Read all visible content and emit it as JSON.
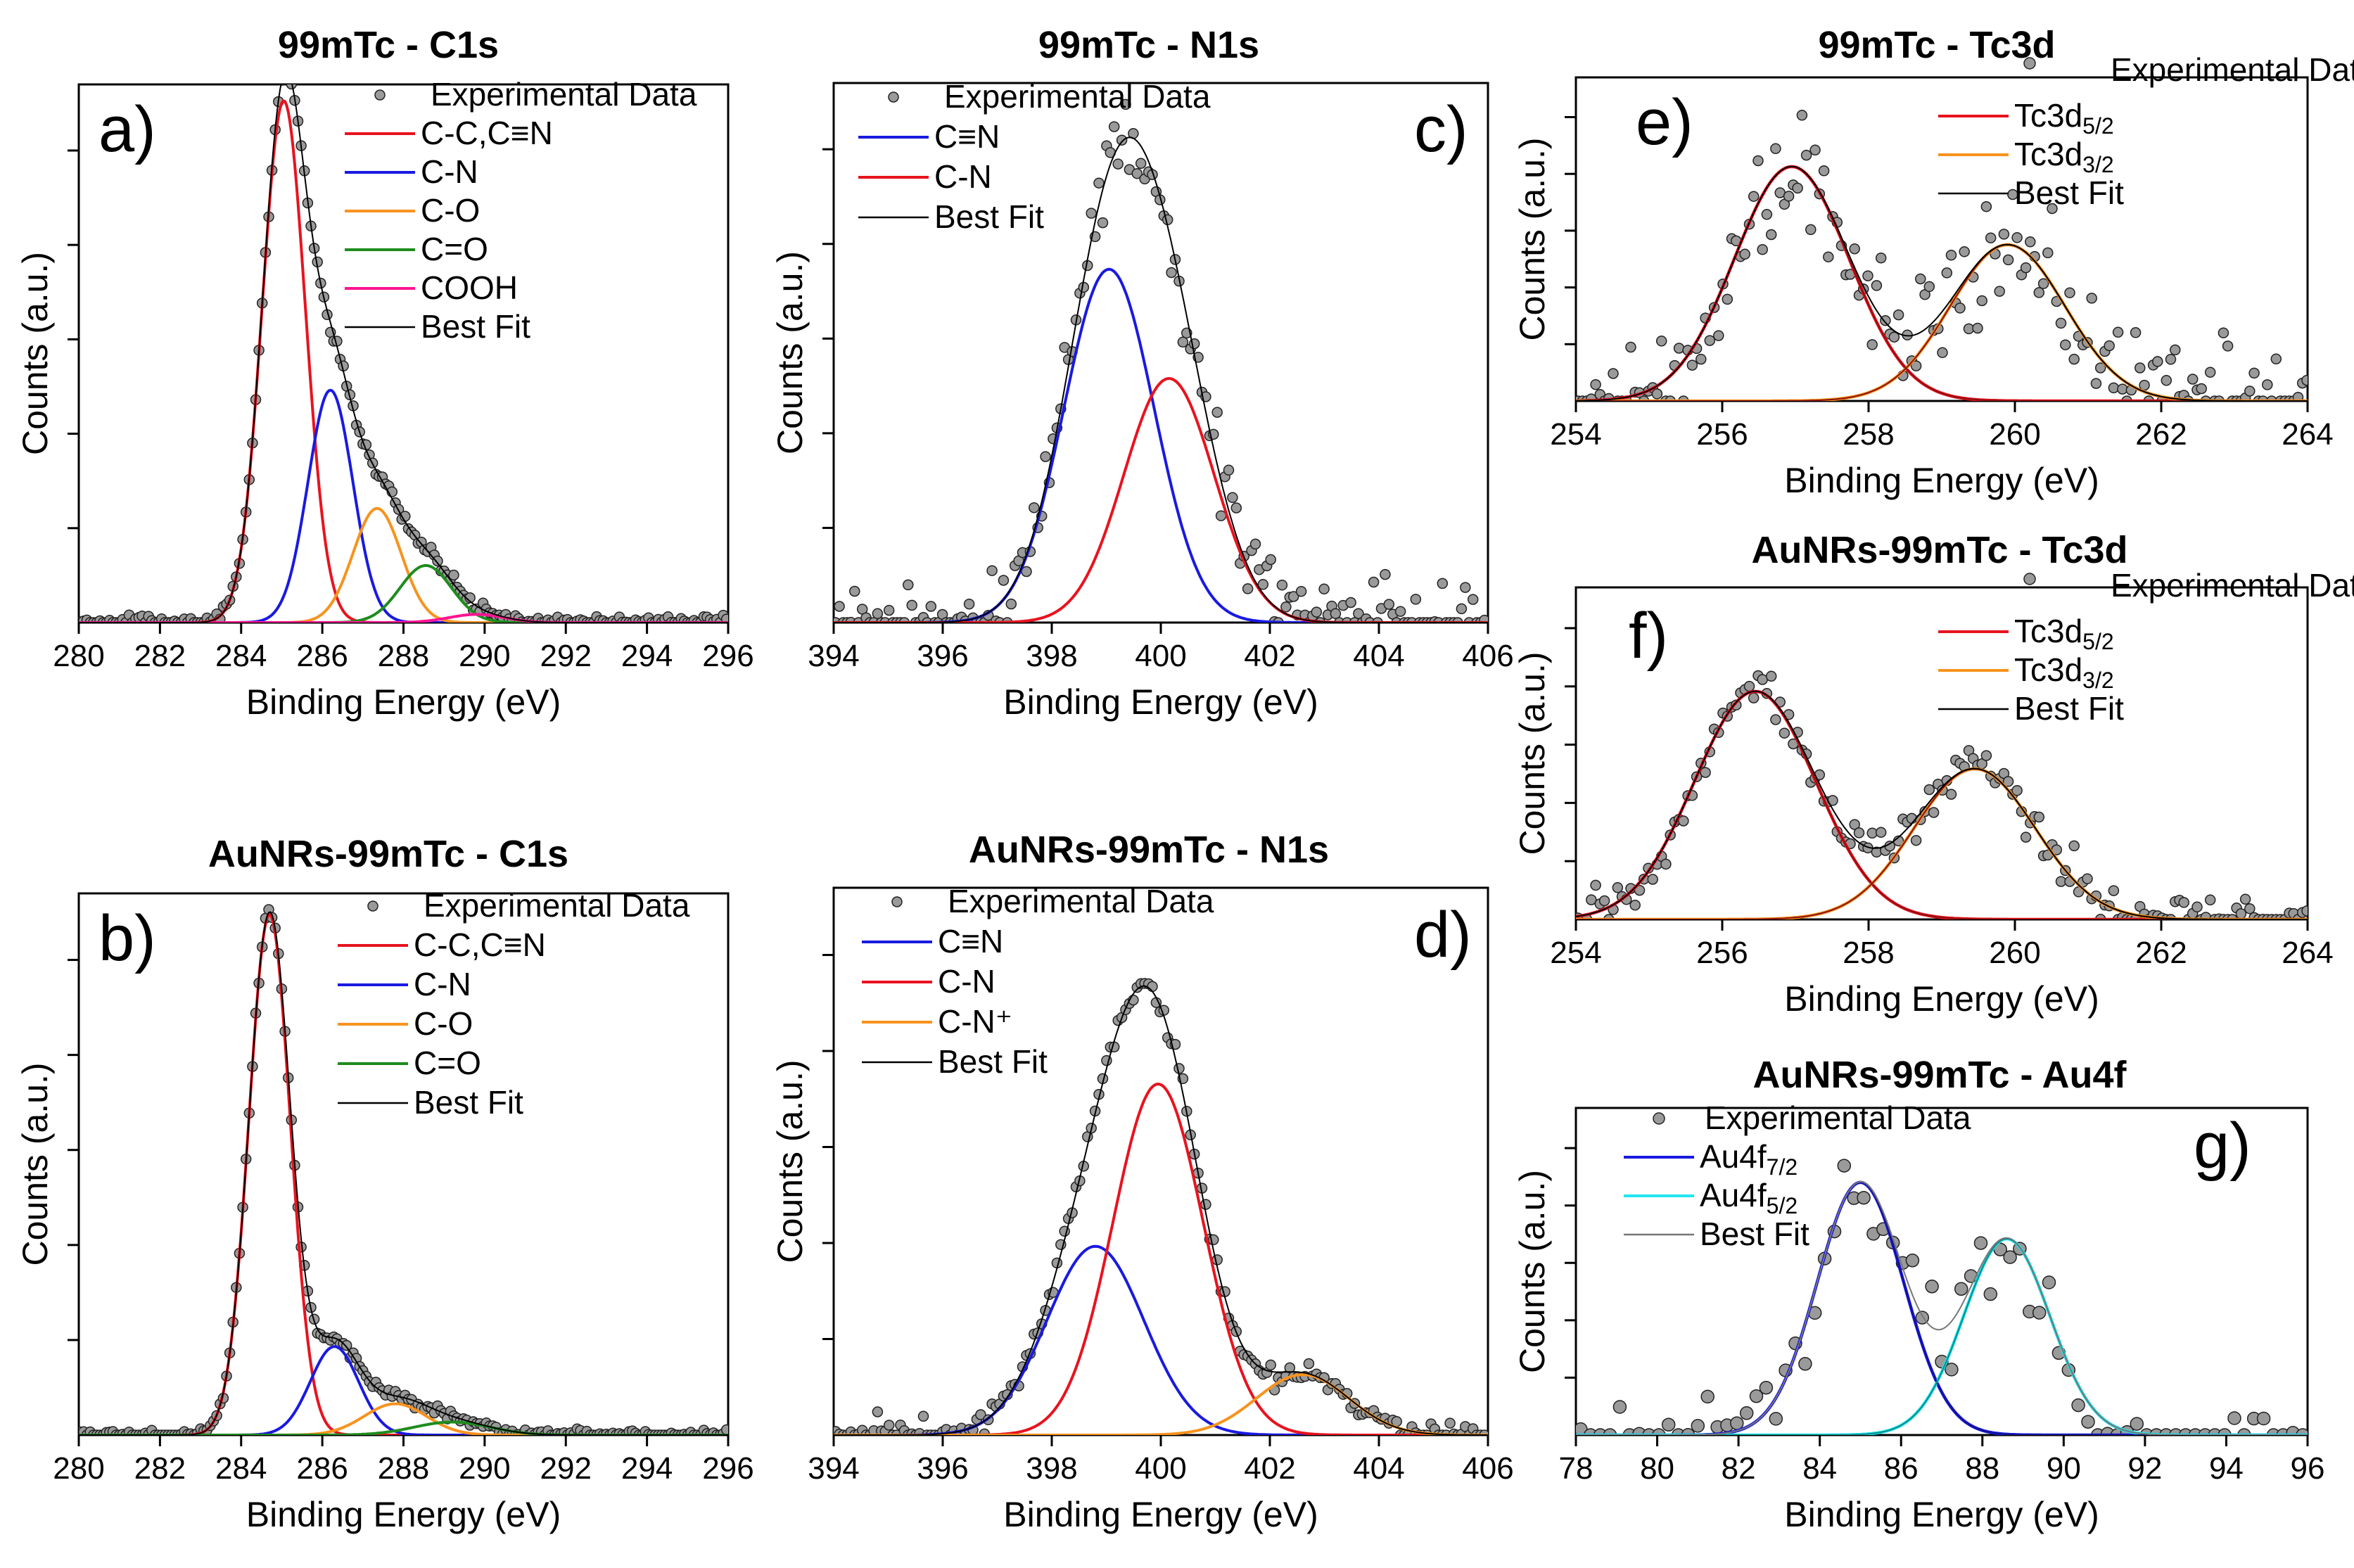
{
  "figure": {
    "description": "XPS spectra panels",
    "colors": {
      "red": "#e8131f",
      "blue": "#1a1ae0",
      "orange": "#f7931e",
      "green": "#1e8c1e",
      "magenta": "#ff1493",
      "darkred": "#8b1010",
      "darkblue": "#12128c",
      "cyan": "#22e6f0",
      "teal": "#0b8a8a",
      "black": "#000000",
      "gray": "#777777"
    }
  },
  "chart_data": [
    {
      "id": "a",
      "type": "scatter",
      "title": "99mTc - C1s",
      "panel_label": "a)",
      "xlabel": "Binding Energy (eV)",
      "ylabel": "Counts (a.u.)",
      "xlim": [
        280,
        296
      ],
      "ylim": [
        0,
        1.32
      ],
      "xticks": [
        280,
        282,
        284,
        286,
        288,
        290,
        292,
        294,
        296
      ],
      "xtick_labels": [
        "280",
        "282",
        "284",
        "286",
        "288",
        "290",
        "292",
        "294",
        "296"
      ],
      "noise": 0.008,
      "point_step": 0.08,
      "experimental_label": "Experimental Data",
      "best_fit": {
        "name": "Best Fit",
        "color": "#000000"
      },
      "series": [
        {
          "name": "C-C,C≡N",
          "color": "#e8131f",
          "center": 285.05,
          "amp": 1.28,
          "fwhm": 1.25
        },
        {
          "name": "C-N",
          "color": "#1a1ae0",
          "center": 286.2,
          "amp": 0.57,
          "fwhm": 1.3
        },
        {
          "name": "C-O",
          "color": "#f7931e",
          "center": 287.35,
          "amp": 0.28,
          "fwhm": 1.4
        },
        {
          "name": "C=O",
          "color": "#1e8c1e",
          "center": 288.55,
          "amp": 0.14,
          "fwhm": 1.5
        },
        {
          "name": "COOH",
          "color": "#ff1493",
          "center": 289.8,
          "amp": 0.02,
          "fwhm": 1.6
        }
      ]
    },
    {
      "id": "b",
      "type": "scatter",
      "title": "AuNRs-99mTc - C1s",
      "panel_label": "b)",
      "xlabel": "Binding Energy (eV)",
      "ylabel": "Counts (a.u.)",
      "xlim": [
        280,
        296
      ],
      "ylim": [
        0,
        1.04
      ],
      "xticks": [
        280,
        282,
        284,
        286,
        288,
        290,
        292,
        294,
        296
      ],
      "xtick_labels": [
        "280",
        "282",
        "284",
        "286",
        "288",
        "290",
        "292",
        "294",
        "296"
      ],
      "noise": 0.006,
      "point_step": 0.08,
      "experimental_label": "Experimental Data",
      "best_fit": {
        "name": "Best Fit",
        "color": "#000000"
      },
      "series": [
        {
          "name": "C-C,C≡N",
          "color": "#e8131f",
          "center": 284.7,
          "amp": 1.0,
          "fwhm": 1.2
        },
        {
          "name": "C-N",
          "color": "#1a1ae0",
          "center": 286.3,
          "amp": 0.17,
          "fwhm": 1.4
        },
        {
          "name": "C-O",
          "color": "#f7931e",
          "center": 287.8,
          "amp": 0.06,
          "fwhm": 1.8
        },
        {
          "name": "C=O",
          "color": "#1e8c1e",
          "center": 289.2,
          "amp": 0.025,
          "fwhm": 2.2
        }
      ]
    },
    {
      "id": "c",
      "type": "scatter",
      "title": "99mTc - N1s",
      "panel_label": "c)",
      "xlabel": "Binding Energy (eV)",
      "ylabel": "Counts (a.u.)",
      "xlim": [
        394,
        406
      ],
      "ylim": [
        0,
        1.68
      ],
      "xticks": [
        394,
        396,
        398,
        400,
        402,
        404,
        406
      ],
      "xtick_labels": [
        "394",
        "396",
        "398",
        "400",
        "402",
        "404",
        "406"
      ],
      "noise": 0.07,
      "point_step": 0.07,
      "experimental_label": "Experimental Data",
      "best_fit": {
        "name": "Best Fit",
        "color": "#000000"
      },
      "series": [
        {
          "name": "C≡N",
          "color": "#1a1ae0",
          "center": 399.05,
          "amp": 1.1,
          "fwhm": 1.95
        },
        {
          "name": "C-N",
          "color": "#e8131f",
          "center": 400.15,
          "amp": 0.76,
          "fwhm": 1.95
        }
      ]
    },
    {
      "id": "d",
      "type": "scatter",
      "title": "AuNRs-99mTc - N1s",
      "panel_label": "d)",
      "xlabel": "Binding Energy (eV)",
      "ylabel": "Counts (a.u.)",
      "xlim": [
        394,
        406
      ],
      "ylim": [
        0,
        1.45
      ],
      "xticks": [
        394,
        396,
        398,
        400,
        402,
        404,
        406
      ],
      "xtick_labels": [
        "394",
        "396",
        "398",
        "400",
        "402",
        "404",
        "406"
      ],
      "noise": 0.018,
      "point_step": 0.07,
      "experimental_label": "Experimental Data",
      "best_fit": {
        "name": "Best Fit",
        "color": "#000000"
      },
      "series": [
        {
          "name": "C≡N",
          "color": "#1a1ae0",
          "center": 398.8,
          "amp": 0.5,
          "fwhm": 2.1
        },
        {
          "name": "C-N",
          "color": "#e8131f",
          "center": 399.95,
          "amp": 0.93,
          "fwhm": 1.95
        },
        {
          "name": "C-N⁺",
          "color": "#f7931e",
          "center": 402.6,
          "amp": 0.16,
          "fwhm": 2.0
        }
      ]
    },
    {
      "id": "e",
      "type": "scatter",
      "title": "99mTc - Tc3d",
      "panel_label": "e)",
      "xlabel": "Binding Energy (eV)",
      "ylabel": "Counts (a.u.)",
      "xlim": [
        254,
        264
      ],
      "ylim": [
        0,
        1.45
      ],
      "xticks": [
        254,
        256,
        258,
        260,
        262,
        264
      ],
      "xtick_labels": [
        "254",
        "256",
        "258",
        "260",
        "262",
        "264"
      ],
      "noise": 0.12,
      "point_step": 0.06,
      "experimental_label": "Experimental Data",
      "best_fit": {
        "name": "Best Fit",
        "color": "#000000"
      },
      "series": [
        {
          "name": "Tc3d",
          "sub": "5/2",
          "color": "#e8131f",
          "outline": "#8b1010",
          "center": 256.95,
          "amp": 1.05,
          "fwhm": 1.85
        },
        {
          "name": "Tc3d",
          "sub": "3/2",
          "color": "#f7931e",
          "outline": "#8b1010",
          "center": 259.9,
          "amp": 0.7,
          "fwhm": 1.85
        }
      ]
    },
    {
      "id": "f",
      "type": "scatter",
      "title": "AuNRs-99mTc - Tc3d",
      "panel_label": "f)",
      "xlabel": "Binding Energy (eV)",
      "ylabel": "Counts (a.u.)",
      "xlim": [
        254,
        264
      ],
      "ylim": [
        0,
        1.5
      ],
      "xticks": [
        254,
        256,
        258,
        260,
        262,
        264
      ],
      "xtick_labels": [
        "254",
        "256",
        "258",
        "260",
        "262",
        "264"
      ],
      "noise": 0.05,
      "point_step": 0.06,
      "experimental_label": "Experimental Data",
      "best_fit": {
        "name": "Best Fit",
        "color": "#000000"
      },
      "series": [
        {
          "name": "Tc3d",
          "sub": "5/2",
          "color": "#e8131f",
          "outline": "#8b1010",
          "center": 256.45,
          "amp": 1.03,
          "fwhm": 1.95
        },
        {
          "name": "Tc3d",
          "sub": "3/2",
          "color": "#f7931e",
          "outline": "#8b1010",
          "center": 259.45,
          "amp": 0.68,
          "fwhm": 1.95
        }
      ]
    },
    {
      "id": "g",
      "type": "scatter",
      "title": "AuNRs-99mTc - Au4f",
      "panel_label": "g)",
      "xlabel": "Binding Energy (eV)",
      "ylabel": "Counts (a.u.)",
      "xlim": [
        78,
        96
      ],
      "ylim": [
        0,
        1.45
      ],
      "xticks": [
        78,
        80,
        82,
        84,
        86,
        88,
        90,
        92,
        94,
        96
      ],
      "xtick_labels": [
        "78",
        "80",
        "82",
        "84",
        "86",
        "88",
        "90",
        "92",
        "94",
        "96"
      ],
      "noise": 0.1,
      "point_step": 0.24,
      "experimental_label": "Experimental Data",
      "best_fit": {
        "name": "Best Fit",
        "color": "#777777"
      },
      "series": [
        {
          "name": "Au4f",
          "sub": "7/2",
          "color": "#1a1ae0",
          "outline": "#12128c",
          "center": 85.0,
          "amp": 1.12,
          "fwhm": 2.5
        },
        {
          "name": "Au4f",
          "sub": "5/2",
          "color": "#22e6f0",
          "outline": "#0b8a8a",
          "center": 88.6,
          "amp": 0.87,
          "fwhm": 2.5
        }
      ]
    }
  ]
}
